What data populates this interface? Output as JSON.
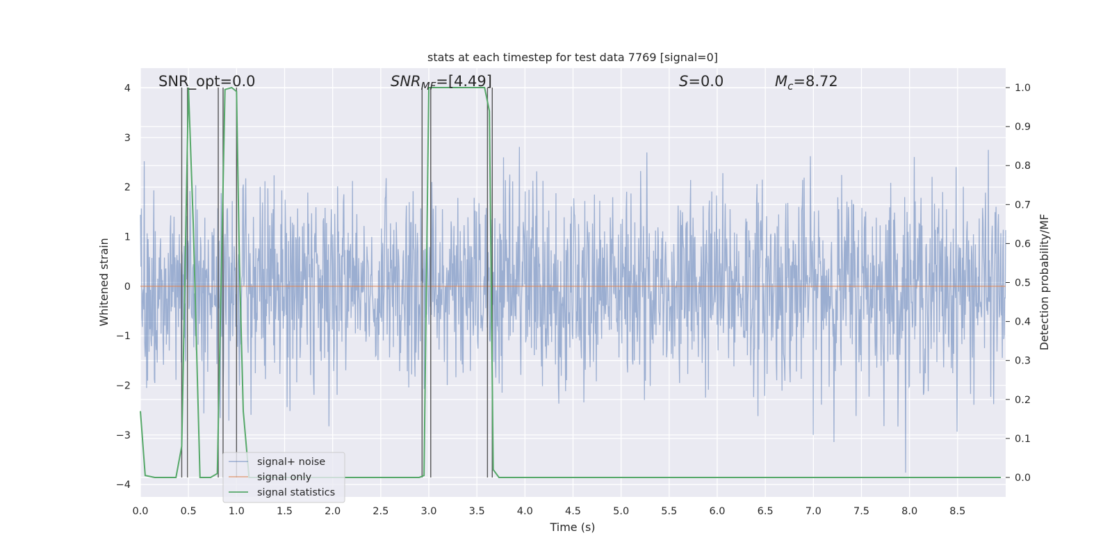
{
  "chart_data": {
    "type": "line",
    "title": "stats at each timestep for test data 7769 [signal=0]",
    "xlabel": "Time (s)",
    "ylabel": "Whitened strain",
    "y2label": "Detection probability/MF",
    "xlim": [
      0,
      9
    ],
    "ylim": [
      -4.25,
      4.4
    ],
    "y2lim": [
      -0.05,
      1.05
    ],
    "xticks": [
      "0.0",
      "0.5",
      "1.0",
      "1.5",
      "2.0",
      "2.5",
      "3.0",
      "3.5",
      "4.0",
      "4.5",
      "5.0",
      "5.5",
      "6.0",
      "6.5",
      "7.0",
      "7.5",
      "8.0",
      "8.5"
    ],
    "yticks": [
      "4",
      "3",
      "2",
      "1",
      "0",
      "−1",
      "−2",
      "−3",
      "−4"
    ],
    "y2ticks": [
      "1.0",
      "0.9",
      "0.8",
      "0.7",
      "0.6",
      "0.5",
      "0.4",
      "0.3",
      "0.2",
      "0.1",
      "0.0"
    ],
    "grid": true,
    "legend_position": "lower-left",
    "annotations": {
      "snr_opt": "SNR_opt=0.0",
      "snr_mf_main": "SNR",
      "snr_mf_sub": "MF",
      "snr_mf_value": "=[4.49]",
      "s_main": "S",
      "s_value": "=0.0",
      "mc_main": "M",
      "mc_sub": "c",
      "mc_value": "=8.72"
    },
    "vertical_lines_x": [
      0.43,
      0.49,
      0.81,
      0.86,
      1.0,
      2.93,
      3.02,
      3.61,
      3.66
    ],
    "series": [
      {
        "name": "signal+ noise",
        "color": "#4c72b0",
        "note_kind": "noise",
        "std": 1.0,
        "samples": 1800
      },
      {
        "name": "signal only",
        "color": "#dd8452",
        "x": [
          0,
          9
        ],
        "y": [
          0,
          0
        ]
      },
      {
        "name": "signal statistics",
        "color": "#55a868",
        "axis": "right",
        "x": [
          0.0,
          0.05,
          0.15,
          0.37,
          0.43,
          0.5,
          0.55,
          0.62,
          0.7,
          0.73,
          0.8,
          0.88,
          0.95,
          1.0,
          1.03,
          1.07,
          1.13,
          1.2,
          2.9,
          2.95,
          3.0,
          3.05,
          3.5,
          3.58,
          3.63,
          3.67,
          3.73,
          3.8,
          4.5,
          8.95
        ],
        "y": [
          0.17,
          0.005,
          0.0,
          0.0,
          0.08,
          1.0,
          0.65,
          0.0,
          0.0,
          0.0,
          0.01,
          0.995,
          1.0,
          0.99,
          0.55,
          0.17,
          0.0,
          0.0,
          0.0,
          0.005,
          1.0,
          1.0,
          1.0,
          1.0,
          0.94,
          0.02,
          0.0,
          0.0,
          0.0,
          0.0
        ]
      }
    ]
  }
}
